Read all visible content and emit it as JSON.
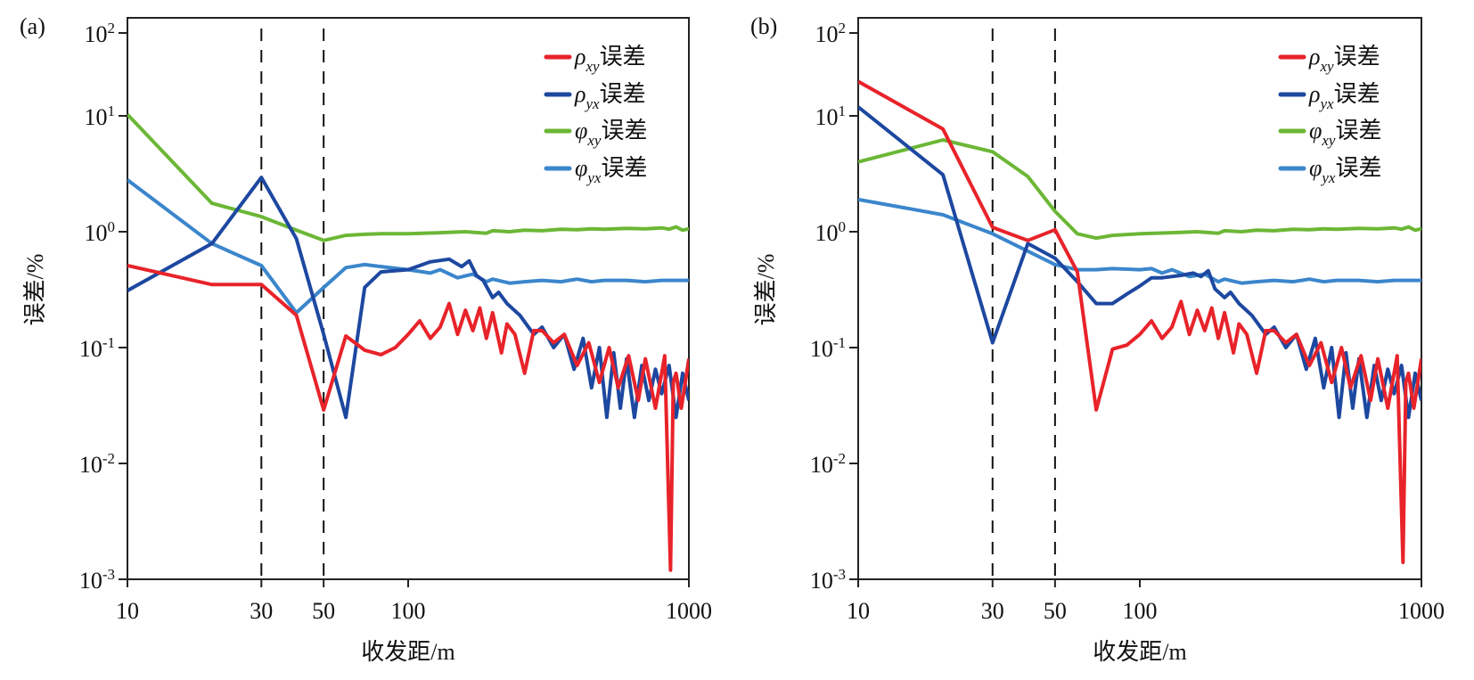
{
  "colors": {
    "rho_xy": "#e8232a",
    "rho_yx": "#1d48a0",
    "phi_xy": "#6cb736",
    "phi_yx": "#3b86cc",
    "axis": "#222222"
  },
  "chart_data": [
    {
      "type": "line",
      "panel": "(a)",
      "xscale": "log",
      "yscale": "log",
      "xlabel": "收发距/m",
      "ylabel": "误差/%",
      "xlim": [
        10,
        1000
      ],
      "ylim": [
        0.001,
        100
      ],
      "xticks": [
        {
          "v": 10,
          "label": "10"
        },
        {
          "v": 30,
          "label": "30"
        },
        {
          "v": 50,
          "label": "50"
        },
        {
          "v": 100,
          "label": "100"
        },
        {
          "v": 1000,
          "label": "1000"
        }
      ],
      "yticks": [
        {
          "v": 100,
          "base": "10",
          "exp": "2"
        },
        {
          "v": 10,
          "base": "10",
          "exp": "1"
        },
        {
          "v": 1,
          "base": "10",
          "exp": "0"
        },
        {
          "v": 0.1,
          "base": "10",
          "exp": "-1"
        },
        {
          "v": 0.01,
          "base": "10",
          "exp": "-2"
        },
        {
          "v": 0.001,
          "base": "10",
          "exp": "-3"
        }
      ],
      "vlines": [
        30,
        50
      ],
      "legend": "top-right",
      "series": [
        {
          "key": "rho_xy",
          "sym": "ρ",
          "sub": "xy",
          "suffix": "误差",
          "x": [
            10,
            20,
            30,
            40,
            50,
            60,
            70,
            80,
            90,
            100,
            110,
            120,
            130,
            140,
            150,
            160,
            170,
            180,
            190,
            200,
            215,
            225,
            240,
            260,
            280,
            300,
            330,
            360,
            400,
            440,
            480,
            520,
            560,
            610,
            660,
            700,
            760,
            820,
            860,
            880,
            900,
            940,
            1000
          ],
          "y": [
            0.51,
            0.35,
            0.35,
            0.19,
            0.029,
            0.126,
            0.095,
            0.087,
            0.1,
            0.13,
            0.17,
            0.12,
            0.15,
            0.24,
            0.13,
            0.21,
            0.14,
            0.22,
            0.12,
            0.2,
            0.09,
            0.16,
            0.13,
            0.06,
            0.14,
            0.14,
            0.11,
            0.13,
            0.07,
            0.11,
            0.05,
            0.1,
            0.045,
            0.085,
            0.035,
            0.08,
            0.03,
            0.085,
            0.0012,
            0.05,
            0.06,
            0.03,
            0.08
          ]
        },
        {
          "key": "rho_yx",
          "sym": "ρ",
          "sub": "yx",
          "suffix": "误差",
          "x": [
            10,
            20,
            30,
            40,
            50,
            60,
            70,
            80,
            90,
            100,
            120,
            140,
            155,
            165,
            175,
            185,
            200,
            210,
            225,
            250,
            280,
            300,
            330,
            360,
            390,
            420,
            450,
            480,
            510,
            540,
            570,
            600,
            640,
            680,
            720,
            760,
            800,
            850,
            900,
            950,
            1000
          ],
          "y": [
            0.31,
            0.79,
            2.94,
            0.87,
            0.13,
            0.025,
            0.33,
            0.45,
            0.46,
            0.47,
            0.55,
            0.58,
            0.5,
            0.56,
            0.42,
            0.38,
            0.27,
            0.3,
            0.24,
            0.19,
            0.13,
            0.15,
            0.1,
            0.13,
            0.065,
            0.12,
            0.045,
            0.1,
            0.025,
            0.09,
            0.03,
            0.08,
            0.025,
            0.07,
            0.035,
            0.065,
            0.04,
            0.07,
            0.025,
            0.06,
            0.035
          ]
        },
        {
          "key": "phi_xy",
          "sym": "φ",
          "sub": "xy",
          "suffix": "误差",
          "x": [
            10,
            20,
            30,
            40,
            50,
            60,
            70,
            80,
            100,
            130,
            160,
            190,
            200,
            230,
            260,
            300,
            350,
            400,
            450,
            500,
            600,
            700,
            800,
            850,
            900,
            950,
            1000
          ],
          "y": [
            10.4,
            1.76,
            1.35,
            1.03,
            0.84,
            0.93,
            0.95,
            0.96,
            0.96,
            0.98,
            1.0,
            0.97,
            1.02,
            1.0,
            1.03,
            1.02,
            1.05,
            1.04,
            1.06,
            1.05,
            1.07,
            1.06,
            1.08,
            1.05,
            1.1,
            1.03,
            1.06
          ]
        },
        {
          "key": "phi_yx",
          "sym": "φ",
          "sub": "yx",
          "suffix": "误差",
          "x": [
            10,
            20,
            30,
            40,
            50,
            60,
            70,
            80,
            100,
            120,
            130,
            150,
            170,
            190,
            200,
            230,
            260,
            300,
            350,
            400,
            450,
            500,
            600,
            700,
            800,
            900,
            1000
          ],
          "y": [
            2.8,
            0.79,
            0.51,
            0.2,
            0.33,
            0.49,
            0.52,
            0.5,
            0.47,
            0.44,
            0.47,
            0.4,
            0.43,
            0.37,
            0.39,
            0.36,
            0.37,
            0.38,
            0.37,
            0.39,
            0.37,
            0.38,
            0.38,
            0.37,
            0.38,
            0.38,
            0.38
          ]
        }
      ]
    },
    {
      "type": "line",
      "panel": "(b)",
      "xscale": "log",
      "yscale": "log",
      "xlabel": "收发距/m",
      "ylabel": "误差/%",
      "xlim": [
        10,
        1000
      ],
      "ylim": [
        0.001,
        100
      ],
      "xticks": [
        {
          "v": 10,
          "label": "10"
        },
        {
          "v": 30,
          "label": "30"
        },
        {
          "v": 50,
          "label": "50"
        },
        {
          "v": 100,
          "label": "100"
        },
        {
          "v": 1000,
          "label": "1000"
        }
      ],
      "yticks": [
        {
          "v": 100,
          "base": "10",
          "exp": "2"
        },
        {
          "v": 10,
          "base": "10",
          "exp": "1"
        },
        {
          "v": 1,
          "base": "10",
          "exp": "0"
        },
        {
          "v": 0.1,
          "base": "10",
          "exp": "-1"
        },
        {
          "v": 0.01,
          "base": "10",
          "exp": "-2"
        },
        {
          "v": 0.001,
          "base": "10",
          "exp": "-3"
        }
      ],
      "vlines": [
        30,
        50
      ],
      "legend": "top-right",
      "series": [
        {
          "key": "rho_xy",
          "sym": "ρ",
          "sub": "xy",
          "suffix": "误差",
          "x": [
            10,
            20,
            30,
            40,
            50,
            60,
            70,
            80,
            90,
            100,
            110,
            120,
            130,
            140,
            150,
            160,
            170,
            180,
            190,
            200,
            215,
            225,
            240,
            260,
            280,
            300,
            330,
            360,
            400,
            440,
            480,
            520,
            560,
            610,
            660,
            700,
            760,
            820,
            860,
            880,
            900,
            940,
            1000
          ],
          "y": [
            26,
            7.7,
            1.09,
            0.84,
            1.04,
            0.45,
            0.029,
            0.097,
            0.105,
            0.13,
            0.17,
            0.12,
            0.15,
            0.25,
            0.13,
            0.21,
            0.14,
            0.22,
            0.12,
            0.2,
            0.09,
            0.16,
            0.13,
            0.06,
            0.14,
            0.14,
            0.11,
            0.13,
            0.07,
            0.11,
            0.05,
            0.1,
            0.045,
            0.085,
            0.035,
            0.08,
            0.03,
            0.085,
            0.0014,
            0.05,
            0.06,
            0.03,
            0.08
          ]
        },
        {
          "key": "rho_yx",
          "sym": "ρ",
          "sub": "yx",
          "suffix": "误差",
          "x": [
            10,
            20,
            30,
            40,
            50,
            60,
            70,
            80,
            90,
            100,
            110,
            120,
            140,
            155,
            165,
            175,
            185,
            200,
            210,
            225,
            250,
            280,
            300,
            330,
            360,
            390,
            420,
            450,
            480,
            510,
            540,
            570,
            600,
            640,
            680,
            720,
            760,
            800,
            850,
            900,
            950,
            1000
          ],
          "y": [
            12.8,
            3.1,
            0.11,
            0.79,
            0.59,
            0.37,
            0.24,
            0.24,
            0.29,
            0.34,
            0.4,
            0.4,
            0.42,
            0.44,
            0.41,
            0.46,
            0.32,
            0.27,
            0.3,
            0.24,
            0.19,
            0.13,
            0.15,
            0.1,
            0.13,
            0.065,
            0.12,
            0.045,
            0.1,
            0.025,
            0.09,
            0.03,
            0.08,
            0.025,
            0.07,
            0.035,
            0.065,
            0.04,
            0.07,
            0.025,
            0.06,
            0.035
          ]
        },
        {
          "key": "phi_xy",
          "sym": "φ",
          "sub": "xy",
          "suffix": "误差",
          "x": [
            10,
            20,
            30,
            40,
            50,
            60,
            70,
            80,
            100,
            130,
            160,
            190,
            200,
            230,
            260,
            300,
            350,
            400,
            450,
            500,
            600,
            700,
            800,
            850,
            900,
            950,
            1000
          ],
          "y": [
            4.0,
            6.2,
            4.9,
            3.0,
            1.5,
            0.96,
            0.88,
            0.93,
            0.96,
            0.98,
            1.0,
            0.97,
            1.02,
            1.0,
            1.03,
            1.02,
            1.05,
            1.04,
            1.06,
            1.05,
            1.07,
            1.06,
            1.08,
            1.05,
            1.1,
            1.03,
            1.06
          ]
        },
        {
          "key": "phi_yx",
          "sym": "φ",
          "sub": "yx",
          "suffix": "误差",
          "x": [
            10,
            20,
            30,
            40,
            50,
            60,
            70,
            80,
            100,
            110,
            120,
            130,
            150,
            170,
            190,
            200,
            230,
            260,
            300,
            350,
            400,
            450,
            500,
            600,
            700,
            800,
            900,
            1000
          ],
          "y": [
            1.9,
            1.4,
            0.96,
            0.68,
            0.52,
            0.47,
            0.47,
            0.48,
            0.47,
            0.48,
            0.44,
            0.47,
            0.41,
            0.43,
            0.37,
            0.39,
            0.36,
            0.37,
            0.38,
            0.37,
            0.39,
            0.37,
            0.38,
            0.38,
            0.37,
            0.38,
            0.38,
            0.38
          ]
        }
      ]
    }
  ]
}
